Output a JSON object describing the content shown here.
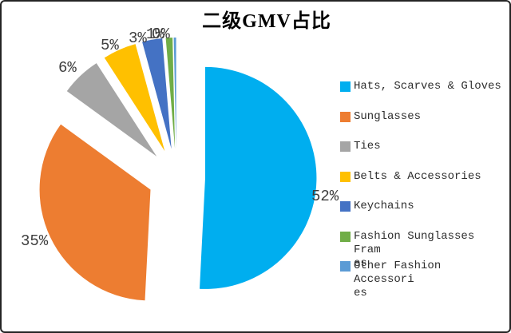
{
  "chart_data": {
    "type": "pie",
    "title": "二级GMV占比",
    "legend_position": "right",
    "exploded": true,
    "direction": "clockwise",
    "start_angle_deg": 0,
    "categories": [
      "Hats, Scarves & Gloves",
      "Sunglasses",
      "Ties",
      "Belts & Accessories",
      "Keychains",
      "Fashion Sunglasses Frames",
      "Other Fashion Accessories"
    ],
    "legend_labels_wrapped": [
      "Hats, Scarves & Gloves",
      "Sunglasses",
      "Ties",
      "Belts & Accessories",
      "Keychains",
      "Fashion Sunglasses Fram\nes",
      "Other Fashion Accessori\nes"
    ],
    "values": [
      52,
      35,
      6,
      5,
      3,
      1,
      0
    ],
    "data_labels": [
      "52%",
      "35%",
      "6%",
      "5%",
      "3%",
      "1%",
      "0%"
    ],
    "unit": "%",
    "colors": [
      "#00AEEF",
      "#ED7D31",
      "#A5A5A5",
      "#FFC000",
      "#4472C4",
      "#70AD47",
      "#5B9BD5"
    ]
  }
}
